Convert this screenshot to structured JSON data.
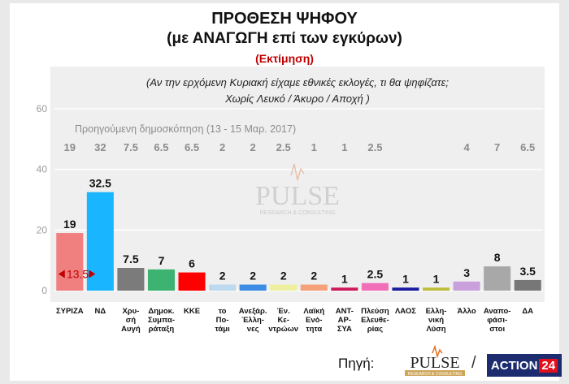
{
  "header": {
    "title": "ΠΡΟΘΕΣΗ ΨΗΦΟΥ",
    "subtitle": "(με ΑΝΑΓΩΓΗ επί των εγκύρων)",
    "estimate": "(Εκτίμηση)"
  },
  "question": {
    "line1": "(Αν την ερχόμενη Κυριακή είχαμε εθνικές εκλογές, τι θα ψηφίζατε;",
    "line2": "Χωρίς Λευκό / Άκυρο / Αποχή )"
  },
  "watermark": {
    "name": "PULSE",
    "tagline": "RESEARCH & CONSULTING"
  },
  "footer": {
    "source_label": "Πηγή:",
    "pulse": "PULSE",
    "pulse_tagline": "RESEARCH & CONSULTING",
    "slash": "/",
    "action_text": "ACTION",
    "action_num": "24"
  },
  "chart_data": {
    "type": "bar",
    "title": "ΠΡΟΘΕΣΗ ΨΗΦΟΥ",
    "ylim": [
      0,
      60
    ],
    "yticks": [
      0,
      20,
      40,
      60
    ],
    "grid": true,
    "previous_label": "Προηγούμενη δημοσκόπηση (13 - 15 Μαρ. 2017)",
    "gap_annotation": "13.5",
    "categories": [
      [
        "ΣΥΡΙΖΑ"
      ],
      [
        "ΝΔ"
      ],
      [
        "Χρυ-",
        "σή",
        "Αυγή"
      ],
      [
        "Δημοκ.",
        "Συμπα-",
        "ράταξη"
      ],
      [
        "ΚΚΕ"
      ],
      [
        "το",
        "Πο-",
        "τάμι"
      ],
      [
        "Ανεξάρ.",
        "Έλλη-",
        "νες"
      ],
      [
        "Έν.",
        "Κε-",
        "ντρώων"
      ],
      [
        "Λαϊκή",
        "Ενό-",
        "τητα"
      ],
      [
        "ΑΝΤ-",
        "ΑΡ-",
        "ΣΥΑ"
      ],
      [
        "Πλεύση",
        "Ελευθε-",
        "ρίας"
      ],
      [
        "ΛΑΟΣ"
      ],
      [
        "Ελλη-",
        "νική",
        "Λύση"
      ],
      [
        "Άλλο"
      ],
      [
        "Αναπο-",
        "φάσι-",
        "στοι"
      ],
      [
        "ΔΑ"
      ]
    ],
    "values": [
      19,
      32.5,
      7.5,
      7,
      6,
      2,
      2,
      2,
      2,
      1,
      2.5,
      1,
      1,
      3,
      8,
      3.5
    ],
    "value_labels": [
      "19",
      "32.5",
      "7.5",
      "7",
      "6",
      "2",
      "2",
      "2",
      "2",
      "1",
      "2.5",
      "1",
      "1",
      "3",
      "8",
      "3.5"
    ],
    "previous": [
      "19",
      "32",
      "7.5",
      "6.5",
      "6.5",
      "2",
      "2",
      "2.5",
      "1",
      "1",
      "2.5",
      "",
      "",
      "4",
      "7",
      "6.5"
    ],
    "colors": [
      "#f08080",
      "#19b5fe",
      "#7b7b7b",
      "#3cb371",
      "#ff0000",
      "#bcd9ee",
      "#3c8ce6",
      "#eef0a0",
      "#f5a27a",
      "#cc1a5a",
      "#f06fb8",
      "#1a1a9e",
      "#bdbd3c",
      "#c9a0dc",
      "#a8a8a8",
      "#777777"
    ]
  }
}
